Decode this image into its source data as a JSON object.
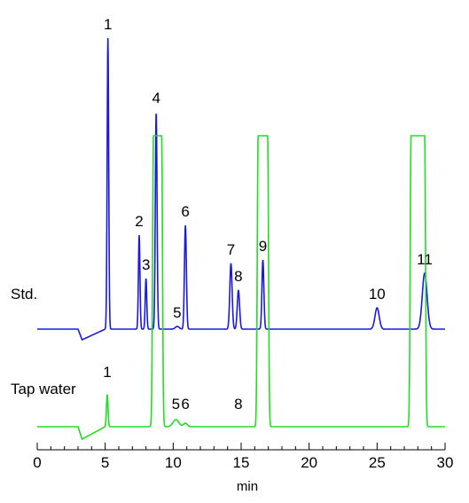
{
  "chart_data": {
    "type": "line",
    "xlabel": "min",
    "xlim": [
      0,
      30
    ],
    "xticks": [
      "0",
      "5",
      "10",
      "15",
      "20",
      "25",
      "30"
    ],
    "grid": false,
    "series": [
      {
        "name": "Std.",
        "color": "#1a1adf",
        "baseline": 0,
        "dip": {
          "start": 3.0,
          "end": 5.0,
          "depth": 12
        },
        "peaks": [
          {
            "label": "1",
            "t": 5.2,
            "h": 328,
            "w": 0.08,
            "show_label": true
          },
          {
            "label": "2",
            "t": 7.5,
            "h": 106,
            "w": 0.08,
            "show_label": true
          },
          {
            "label": "3",
            "t": 8.0,
            "h": 57,
            "w": 0.08,
            "show_label": true
          },
          {
            "label": "4",
            "t": 8.75,
            "h": 245,
            "w": 0.09,
            "show_label": true
          },
          {
            "label": "5",
            "t": 10.3,
            "h": 3,
            "w": 0.2,
            "show_label": true
          },
          {
            "label": "6",
            "t": 10.9,
            "h": 117,
            "w": 0.1,
            "show_label": true
          },
          {
            "label": "7",
            "t": 14.25,
            "h": 74,
            "w": 0.12,
            "show_label": true
          },
          {
            "label": "8",
            "t": 14.8,
            "h": 44,
            "w": 0.12,
            "show_label": true
          },
          {
            "label": "9",
            "t": 16.6,
            "h": 78,
            "w": 0.1,
            "show_label": true
          },
          {
            "label": "10",
            "t": 25.0,
            "h": 24,
            "w": 0.22,
            "show_label": true
          },
          {
            "label": "11",
            "t": 28.5,
            "h": 63,
            "w": 0.25,
            "show_label": true
          }
        ]
      },
      {
        "name": "Tap water",
        "color": "#22dd22",
        "baseline": 0,
        "dip": {
          "start": 3.0,
          "end": 5.0,
          "depth": 14
        },
        "peaks": [
          {
            "label": "1",
            "t": 5.15,
            "h": 36,
            "w": 0.08,
            "show_label": true
          },
          {
            "label": "4",
            "t": 8.85,
            "h": 328,
            "w": 0.3,
            "show_label": false,
            "flat": true
          },
          {
            "label": "5",
            "t": 10.2,
            "h": 8,
            "w": 0.3,
            "show_label": true
          },
          {
            "label": "6",
            "t": 10.9,
            "h": 4,
            "w": 0.2,
            "show_label": true
          },
          {
            "label": "8",
            "t": 14.8,
            "h": 0,
            "w": 0.2,
            "show_label": true
          },
          {
            "label": "9",
            "t": 16.6,
            "h": 328,
            "w": 0.35,
            "show_label": false,
            "flat": true
          },
          {
            "label": "11",
            "t": 28.0,
            "h": 328,
            "w": 0.5,
            "show_label": false,
            "flat": true
          }
        ]
      }
    ]
  }
}
